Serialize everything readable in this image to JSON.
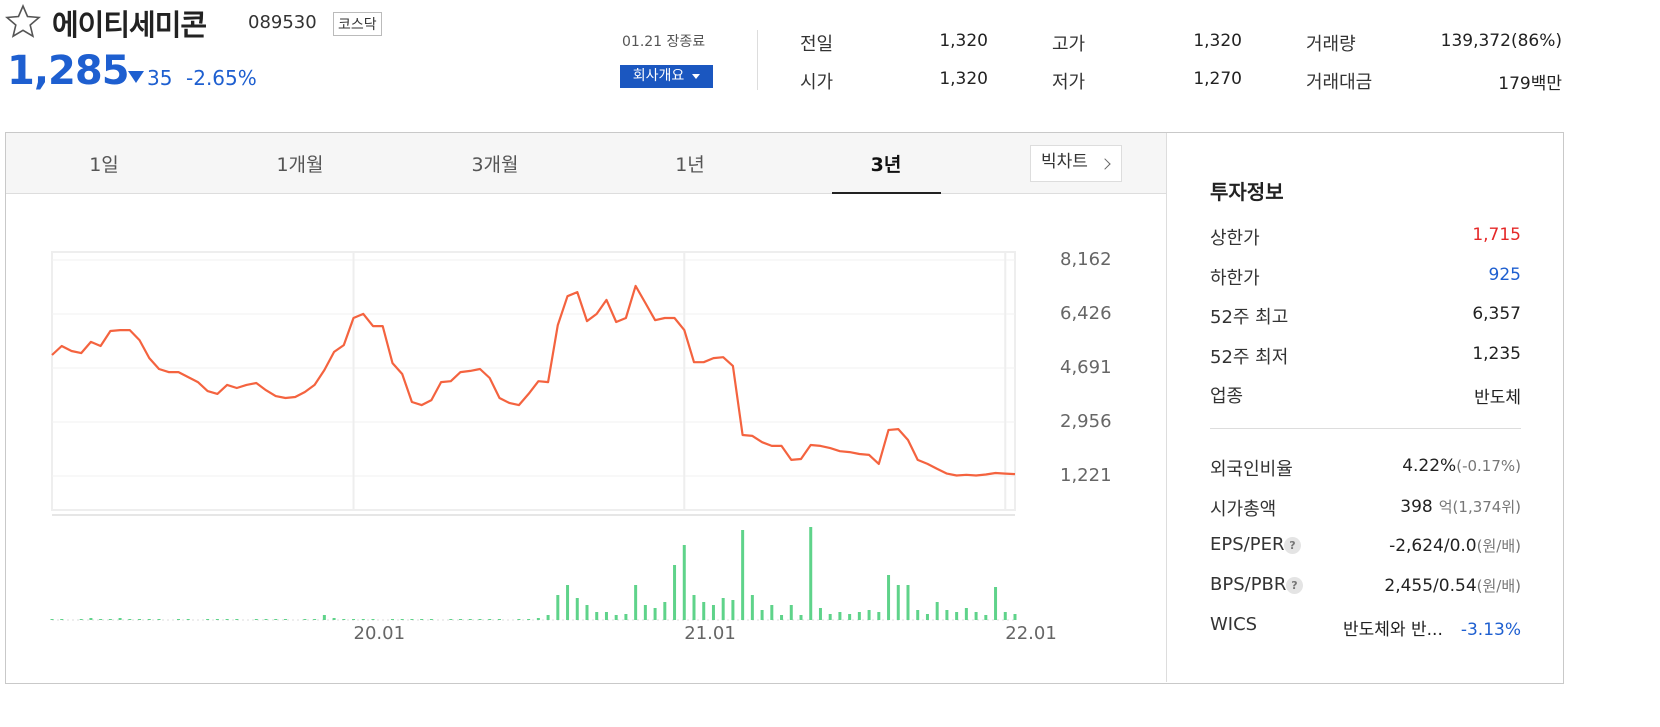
{
  "header": {
    "name": "에이티세미콘",
    "code": "089530",
    "market": "코스닥",
    "price": "1,285",
    "change": "35",
    "change_rate": "-2.65%",
    "status": "01.21 장종료",
    "company_button": "회사개요"
  },
  "quote": [
    {
      "label": "전일",
      "value": "1,320"
    },
    {
      "label": "고가",
      "value": "1,320"
    },
    {
      "label": "거래량",
      "value": "139,372(86%)"
    },
    {
      "label": "시가",
      "value": "1,320"
    },
    {
      "label": "저가",
      "value": "1,270"
    },
    {
      "label": "거래대금",
      "value": "179백만"
    }
  ],
  "tabs": {
    "items": [
      "1일",
      "1개월",
      "3개월",
      "1년",
      "3년"
    ],
    "active": 4,
    "big_chart": "빅차트"
  },
  "invest": {
    "title": "투자정보",
    "help_icon": "?",
    "rows": [
      {
        "label": "상한가",
        "value": "1,715"
      },
      {
        "label": "하한가",
        "value": "925"
      },
      {
        "label": "52주 최고",
        "value": "6,357"
      },
      {
        "label": "52주 최저",
        "value": "1,235"
      },
      {
        "label": "업종",
        "value": "반도체"
      }
    ],
    "rows2": [
      {
        "label": "외국인비율",
        "value": "4.22%",
        "note": "(-0.17%)"
      },
      {
        "label": "시가총액",
        "value": "398",
        "note": "억(1,374위)"
      },
      {
        "label": "EPS/PER",
        "value": "-2,624/0.0",
        "note": "(원/배)"
      },
      {
        "label": "BPS/PBR",
        "value": "2,455/0.54",
        "note": "(원/배)"
      },
      {
        "label": "WICS",
        "value": "반도체와 반...",
        "note": "-3.13%"
      }
    ]
  },
  "chart_data": [
    {
      "type": "line",
      "color": "#f4633f",
      "ylim": [
        130,
        8420
      ],
      "yticks": [
        {
          "value": 8162,
          "label": "8,162"
        },
        {
          "value": 6426,
          "label": "6,426"
        },
        {
          "value": 4691,
          "label": "4,691"
        },
        {
          "value": 2956,
          "label": "2,956"
        },
        {
          "value": 1221,
          "label": "1,221"
        }
      ],
      "values": [
        5110,
        5400,
        5240,
        5170,
        5530,
        5400,
        5880,
        5910,
        5910,
        5590,
        5010,
        4660,
        4560,
        4560,
        4400,
        4240,
        3950,
        3860,
        4150,
        4050,
        4150,
        4210,
        3980,
        3790,
        3730,
        3760,
        3920,
        4150,
        4630,
        5210,
        5430,
        6300,
        6430,
        6040,
        6040,
        4850,
        4500,
        3600,
        3500,
        3660,
        4240,
        4270,
        4560,
        4600,
        4660,
        4370,
        3730,
        3570,
        3500,
        3860,
        4270,
        4240,
        6070,
        7000,
        7130,
        6200,
        6430,
        6880,
        6170,
        6300,
        7330,
        6780,
        6230,
        6300,
        6300,
        5910,
        4880,
        4880,
        5010,
        5040,
        4760,
        2540,
        2510,
        2310,
        2190,
        2190,
        1740,
        1770,
        2220,
        2190,
        2120,
        2020,
        1990,
        1930,
        1900,
        1610,
        2700,
        2730,
        2380,
        1740,
        1610,
        1450,
        1300,
        1240,
        1260,
        1240,
        1270,
        1320,
        1300,
        1285
      ]
    },
    {
      "type": "bar",
      "color": "#5fd38a",
      "ylim": [
        0,
        100
      ],
      "categories": [
        null,
        null,
        null,
        null,
        null,
        null,
        null,
        null,
        null,
        null,
        null,
        null,
        null,
        null,
        null,
        null,
        null,
        null,
        null,
        null,
        null,
        null,
        null,
        null,
        null,
        null,
        null,
        null,
        null,
        null,
        null,
        "20.01",
        null,
        null,
        null,
        null,
        null,
        null,
        null,
        null,
        null,
        null,
        null,
        null,
        null,
        null,
        null,
        null,
        null,
        null,
        null,
        null,
        null,
        null,
        null,
        null,
        null,
        null,
        null,
        null,
        null,
        null,
        null,
        null,
        null,
        "21.01",
        null,
        null,
        null,
        null,
        null,
        null,
        null,
        null,
        null,
        null,
        null,
        null,
        null,
        null,
        null,
        null,
        null,
        null,
        null,
        null,
        null,
        null,
        null,
        null,
        null,
        null,
        null,
        null,
        null,
        null,
        null,
        null,
        "22.01",
        null
      ],
      "values": [
        1,
        1,
        0,
        1,
        2,
        1,
        1,
        2,
        1,
        1,
        1,
        1,
        0,
        1,
        1,
        0,
        1,
        1,
        1,
        1,
        0,
        1,
        1,
        1,
        1,
        0,
        1,
        1,
        5,
        2,
        1,
        1,
        1,
        1,
        0,
        1,
        1,
        1,
        1,
        1,
        0,
        1,
        1,
        1,
        1,
        1,
        1,
        0,
        1,
        1,
        2,
        5,
        25,
        35,
        22,
        15,
        8,
        8,
        5,
        6,
        35,
        15,
        12,
        18,
        55,
        75,
        25,
        18,
        15,
        22,
        20,
        90,
        25,
        10,
        15,
        5,
        15,
        5,
        93,
        12,
        6,
        8,
        6,
        8,
        10,
        8,
        45,
        35,
        35,
        10,
        6,
        18,
        10,
        8,
        12,
        8,
        5,
        33,
        8,
        6
      ]
    }
  ]
}
